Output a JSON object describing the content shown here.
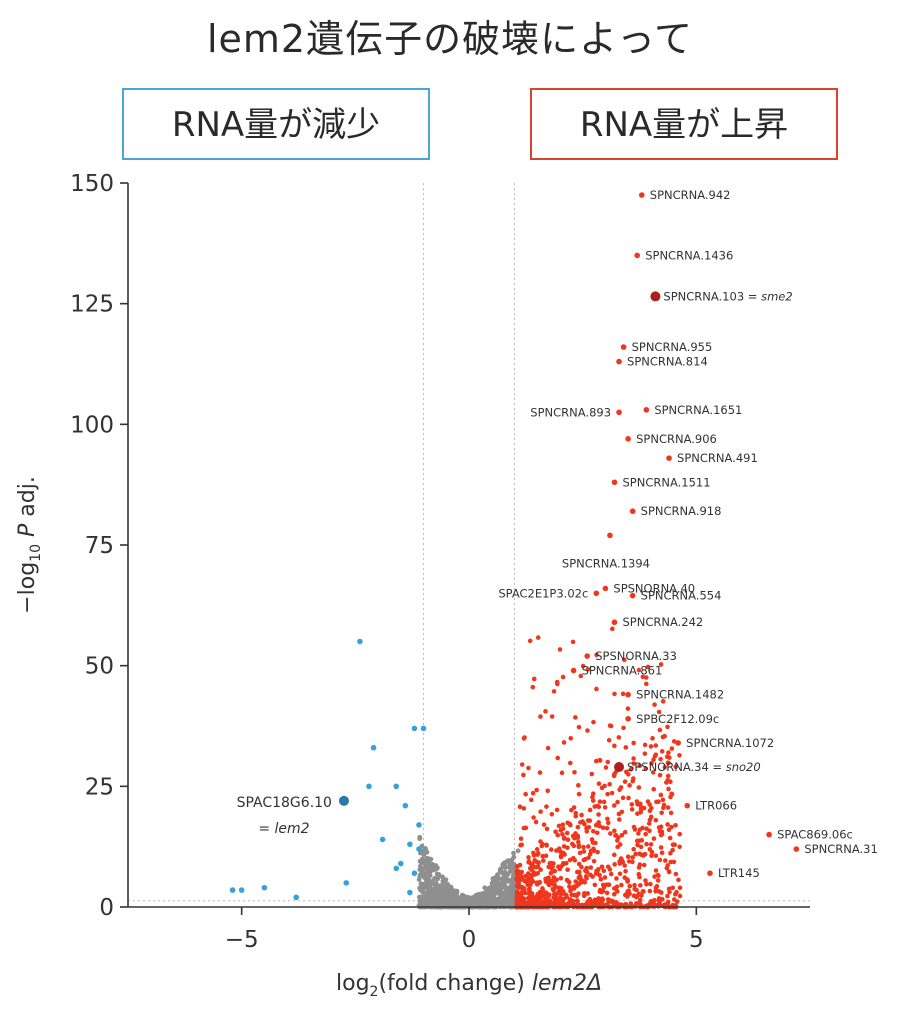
{
  "header": {
    "title": "lem2遺伝子の破壊によって",
    "box_down": "RNA量が減少",
    "box_up": "RNA量が上昇"
  },
  "colors": {
    "up": "#f0361c",
    "down": "#3aa0dc",
    "ns": "#8f8f8f",
    "highlight_up": "#b0201a",
    "highlight_down": "#2a77aa",
    "axis": "#333333",
    "threshold_line": "#bbbbbb"
  },
  "chart_data": {
    "type": "scatter",
    "title": "",
    "xlabel": {
      "prefix": "log",
      "sub": "2",
      "middle": "(fold change) ",
      "italic": "lem2Δ"
    },
    "ylabel": {
      "prefix": "−log",
      "sub": "10",
      "italic": " P",
      "suffix": " adj."
    },
    "xlim": [
      -7.5,
      7.5
    ],
    "ylim": [
      0,
      150
    ],
    "xticks": [
      -5,
      0,
      5
    ],
    "xtick_labels": [
      "−5",
      "0",
      "5"
    ],
    "yticks": [
      0,
      25,
      50,
      75,
      100,
      125,
      150
    ],
    "ytick_labels": [
      "0",
      "25",
      "50",
      "75",
      "100",
      "125",
      "150"
    ],
    "thresholds": {
      "x": [
        -1,
        1
      ],
      "y": 1.3
    },
    "labeled_points": [
      {
        "x": 3.8,
        "y": 147.5,
        "label": "SPNCRNA.942",
        "group": "up"
      },
      {
        "x": 3.7,
        "y": 135,
        "label": "SPNCRNA.1436",
        "group": "up"
      },
      {
        "x": 4.1,
        "y": 126.5,
        "label": "SPNCRNA.103 = ",
        "label_italic": "sme2",
        "group": "up",
        "highlight": true
      },
      {
        "x": 3.4,
        "y": 116,
        "label": "SPNCRNA.955",
        "group": "up"
      },
      {
        "x": 3.3,
        "y": 113,
        "label": "SPNCRNA.814",
        "group": "up"
      },
      {
        "x": 3.3,
        "y": 102.5,
        "label": "SPNCRNA.893",
        "group": "up",
        "label_side": "left"
      },
      {
        "x": 3.9,
        "y": 103,
        "label": "SPNCRNA.1651",
        "group": "up"
      },
      {
        "x": 3.5,
        "y": 97,
        "label": "SPNCRNA.906",
        "group": "up"
      },
      {
        "x": 4.4,
        "y": 93,
        "label": "SPNCRNA.491",
        "group": "up"
      },
      {
        "x": 3.2,
        "y": 88,
        "label": "SPNCRNA.1511",
        "group": "up"
      },
      {
        "x": 3.6,
        "y": 82,
        "label": "SPNCRNA.918",
        "group": "up"
      },
      {
        "x": 3.1,
        "y": 77,
        "label": "SPNCRNA.1394",
        "group": "up",
        "label_side": "below"
      },
      {
        "x": 3.0,
        "y": 66,
        "label": "SPSNORNA.40",
        "group": "up"
      },
      {
        "x": 2.8,
        "y": 65,
        "label": "SPAC2E1P3.02c",
        "group": "up",
        "label_side": "left"
      },
      {
        "x": 3.6,
        "y": 64.5,
        "label": "SPNCRNA.554",
        "group": "up"
      },
      {
        "x": 3.2,
        "y": 59,
        "label": "SPNCRNA.242",
        "group": "up"
      },
      {
        "x": 2.6,
        "y": 52,
        "label": "SPSNORNA.33",
        "group": "up"
      },
      {
        "x": 2.3,
        "y": 49,
        "label": "SPNCRNA.861",
        "group": "up"
      },
      {
        "x": 3.5,
        "y": 44,
        "label": "SPNCRNA.1482",
        "group": "up"
      },
      {
        "x": 3.5,
        "y": 39,
        "label": "SPBC2F12.09c",
        "group": "up"
      },
      {
        "x": 4.6,
        "y": 34,
        "label": "SPNCRNA.1072",
        "group": "up"
      },
      {
        "x": 3.3,
        "y": 29,
        "label": "SPSNORNA.34 = ",
        "label_italic": "sno20",
        "group": "up",
        "highlight": true
      },
      {
        "x": 4.8,
        "y": 21,
        "label": "LTR066",
        "group": "up"
      },
      {
        "x": 6.6,
        "y": 15,
        "label": "SPAC869.06c",
        "group": "up"
      },
      {
        "x": 7.2,
        "y": 12,
        "label": "SPNCRNA.31",
        "group": "up"
      },
      {
        "x": 5.3,
        "y": 7,
        "label": "LTR145",
        "group": "up"
      },
      {
        "x": -2.75,
        "y": 22,
        "label": "SPAC18G6.10",
        "label2": "= ",
        "label2_italic": "lem2",
        "group": "down",
        "highlight": true
      }
    ],
    "down_points": [
      [
        -2.4,
        55
      ],
      [
        -2.1,
        33
      ],
      [
        -1.2,
        37
      ],
      [
        -1.0,
        37
      ],
      [
        -2.2,
        25
      ],
      [
        -1.6,
        25
      ],
      [
        -1.4,
        21
      ],
      [
        -1.9,
        14
      ],
      [
        -1.3,
        13
      ],
      [
        -1.1,
        12
      ],
      [
        -1.5,
        9
      ],
      [
        -1.2,
        7
      ],
      [
        -2.7,
        5
      ],
      [
        -4.5,
        4
      ],
      [
        -5.0,
        3.5
      ],
      [
        -5.2,
        3.5
      ],
      [
        -1.3,
        3
      ],
      [
        -3.8,
        2
      ],
      [
        -1.6,
        8
      ],
      [
        -1.1,
        17
      ]
    ]
  }
}
